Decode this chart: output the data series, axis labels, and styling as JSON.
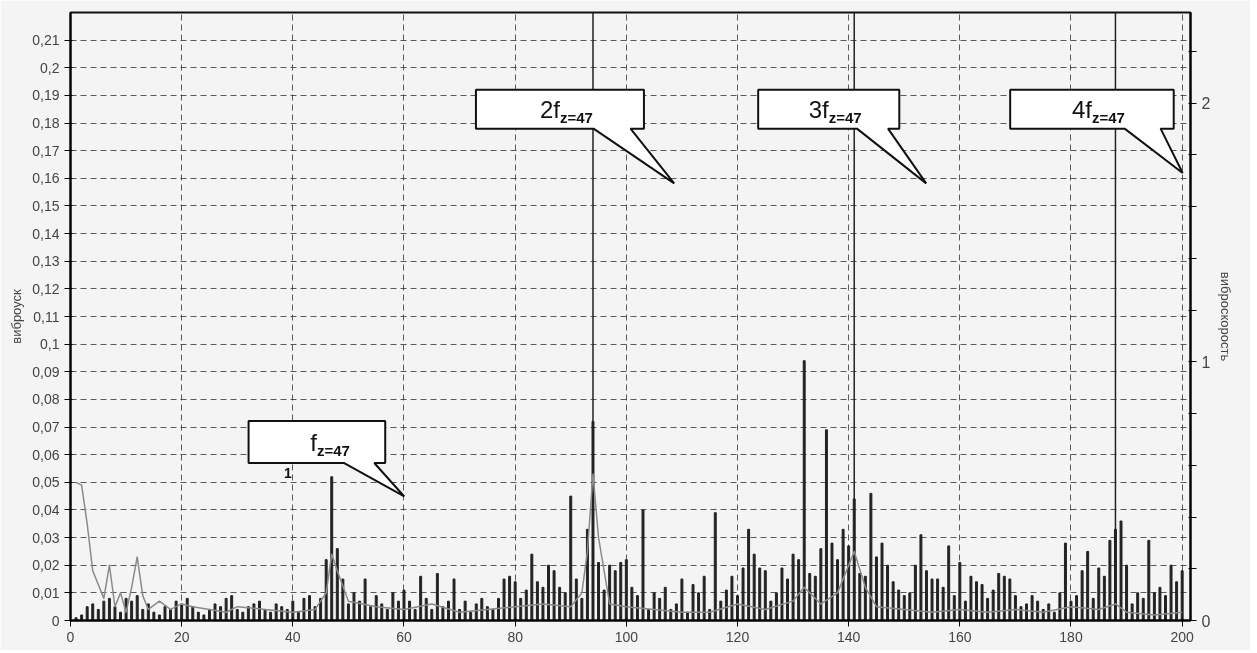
{
  "chart_data": {
    "type": "bar",
    "ylabel": "виброуск",
    "y2label": "виброскорость",
    "xlim": [
      0,
      201.5
    ],
    "xticks": [
      0,
      20,
      40,
      60,
      80,
      100,
      120,
      140,
      160,
      180,
      200
    ],
    "ylim": [
      0,
      0.22
    ],
    "yticks": [
      0,
      {
        "value": 0.01,
        "label": "0,01"
      },
      {
        "value": 0.02,
        "label": "0,02"
      },
      {
        "value": 0.03,
        "label": "0,03"
      },
      {
        "value": 0.04,
        "label": "0,04"
      },
      {
        "value": 0.05,
        "label": "0,05"
      },
      {
        "value": 0.06,
        "label": "0,06"
      },
      {
        "value": 0.07,
        "label": "0,07"
      },
      {
        "value": 0.08,
        "label": "0,08"
      },
      {
        "value": 0.09,
        "label": "0,09"
      },
      {
        "value": 0.1,
        "label": "0,1"
      },
      {
        "value": 0.11,
        "label": "0,11"
      },
      {
        "value": 0.12,
        "label": "0,12"
      },
      {
        "value": 0.13,
        "label": "0,13"
      },
      {
        "value": 0.14,
        "label": "0,14"
      },
      {
        "value": 0.15,
        "label": "0,15"
      },
      {
        "value": 0.16,
        "label": "0,16"
      },
      {
        "value": 0.17,
        "label": "0,17"
      },
      {
        "value": 0.18,
        "label": "0,18"
      },
      {
        "value": 0.19,
        "label": "0,19"
      },
      {
        "value": 0.2,
        "label": "0,2"
      },
      {
        "value": 0.21,
        "label": "0,21"
      }
    ],
    "y2lim": [
      0,
      2.35
    ],
    "y2ticks": [
      0,
      {
        "value": 0.2,
        "label": null
      },
      {
        "value": 0.4,
        "label": null
      },
      {
        "value": 0.6,
        "label": null
      },
      {
        "value": 0.8,
        "label": null
      },
      1,
      {
        "value": 1.2,
        "label": null
      },
      {
        "value": 1.4,
        "label": null
      },
      {
        "value": 1.6,
        "label": null
      },
      {
        "value": 1.8,
        "label": null
      },
      2,
      {
        "value": 2.2,
        "label": null
      }
    ],
    "grid": true,
    "series": [
      {
        "color": "#222222",
        "x": [
          1,
          2,
          3,
          4,
          5,
          6,
          7,
          8,
          9,
          10,
          11,
          12,
          13,
          14,
          15,
          16,
          17,
          18,
          19,
          20,
          21,
          22,
          23,
          24,
          25,
          26,
          27,
          28,
          29,
          30,
          31,
          32,
          33,
          34,
          35,
          36,
          37,
          38,
          39,
          40,
          41,
          42,
          43,
          44,
          45,
          46,
          47,
          48,
          49,
          50,
          51,
          52,
          53,
          54,
          55,
          56,
          57,
          58,
          59,
          60,
          61,
          62,
          63,
          64,
          65,
          66,
          67,
          68,
          69,
          70,
          71,
          72,
          73,
          74,
          75,
          76,
          77,
          78,
          79,
          80,
          81,
          82,
          83,
          84,
          85,
          86,
          87,
          88,
          89,
          90,
          91,
          92,
          93,
          94,
          95,
          96,
          97,
          98,
          99,
          100,
          101,
          102,
          103,
          104,
          105,
          106,
          107,
          108,
          109,
          110,
          111,
          112,
          113,
          114,
          115,
          116,
          117,
          118,
          119,
          120,
          121,
          122,
          123,
          124,
          125,
          126,
          127,
          128,
          129,
          130,
          131,
          132,
          133,
          134,
          135,
          136,
          137,
          138,
          139,
          140,
          141,
          142,
          143,
          144,
          145,
          146,
          147,
          148,
          149,
          150,
          151,
          152,
          153,
          154,
          155,
          156,
          157,
          158,
          159,
          160,
          161,
          162,
          163,
          164,
          165,
          166,
          167,
          168,
          169,
          170,
          171,
          172,
          173,
          174,
          175,
          176,
          177,
          178,
          179,
          180,
          181,
          182,
          183,
          184,
          185,
          186,
          187,
          188,
          189,
          190,
          191,
          192,
          193,
          194,
          195,
          196,
          197,
          198,
          199,
          200
        ],
        "values": [
          0.001,
          0.002,
          0.005,
          0.006,
          0.004,
          0.007,
          0.008,
          0.005,
          0.003,
          0.008,
          0.007,
          0.009,
          0.004,
          0.006,
          0.003,
          0.002,
          0.005,
          0.004,
          0.007,
          0.006,
          0.008,
          0.005,
          0.003,
          0.002,
          0.004,
          0.006,
          0.005,
          0.008,
          0.009,
          0.004,
          0.003,
          0.005,
          0.006,
          0.007,
          0.004,
          0.003,
          0.006,
          0.005,
          0.004,
          0.007,
          0.003,
          0.008,
          0.009,
          0.005,
          0.008,
          0.022,
          0.052,
          0.026,
          0.015,
          0.006,
          0.01,
          0.007,
          0.015,
          0.005,
          0.009,
          0.006,
          0.004,
          0.01,
          0.007,
          0.011,
          0.007,
          0.004,
          0.016,
          0.008,
          0.004,
          0.017,
          0.005,
          0.007,
          0.015,
          0.004,
          0.007,
          0.003,
          0.006,
          0.008,
          0.005,
          0.004,
          0.008,
          0.015,
          0.016,
          0.014,
          0.008,
          0.011,
          0.024,
          0.014,
          0.012,
          0.02,
          0.018,
          0.012,
          0.01,
          0.045,
          0.015,
          0.008,
          0.033,
          0.072,
          0.021,
          0.011,
          0.02,
          0.018,
          0.021,
          0.022,
          0.012,
          0.009,
          0.04,
          0.004,
          0.01,
          0.008,
          0.012,
          0.004,
          0.006,
          0.015,
          0.003,
          0.013,
          0.01,
          0.016,
          0.004,
          0.039,
          0.007,
          0.011,
          0.016,
          0.009,
          0.019,
          0.033,
          0.024,
          0.019,
          0.018,
          0.007,
          0.01,
          0.019,
          0.015,
          0.024,
          0.022,
          0.094,
          0.017,
          0.016,
          0.026,
          0.069,
          0.028,
          0.022,
          0.033,
          0.027,
          0.044,
          0.017,
          0.016,
          0.046,
          0.023,
          0.028,
          0.02,
          0.014,
          0.011,
          0.009,
          0.01,
          0.02,
          0.031,
          0.018,
          0.015,
          0.015,
          0.012,
          0.027,
          0.009,
          0.021,
          0.007,
          0.016,
          0.014,
          0.013,
          0.008,
          0.011,
          0.017,
          0.016,
          0.015,
          0.009,
          0.005,
          0.006,
          0.009,
          0.007,
          0.004,
          0.006,
          0.003,
          0.01,
          0.028,
          0.007,
          0.009,
          0.018,
          0.025,
          0.008,
          0.019,
          0.016,
          0.029,
          0.033,
          0.036,
          0.02,
          0.006,
          0.01,
          0.008,
          0.029,
          0.01,
          0.012,
          0.009,
          0.02,
          0.014,
          0.018
        ]
      },
      {
        "type": "line",
        "color": "#8a8a8a",
        "x": [
          1,
          2,
          3,
          4,
          5,
          6,
          7,
          8,
          9,
          10,
          11,
          12,
          13,
          14,
          16,
          18,
          20,
          22,
          25,
          28,
          30,
          35,
          40,
          44,
          46,
          47,
          48,
          50,
          55,
          60,
          65,
          70,
          75,
          80,
          85,
          90,
          92,
          93,
          94,
          95,
          97,
          100,
          105,
          110,
          115,
          120,
          125,
          130,
          132,
          135,
          138,
          141,
          143,
          145,
          150,
          155,
          160,
          165,
          170,
          175,
          180,
          185,
          188,
          190,
          195,
          200
        ],
        "values": [
          0.05,
          0.049,
          0.035,
          0.018,
          0.013,
          0.008,
          0.02,
          0.005,
          0.01,
          0.003,
          0.012,
          0.023,
          0.009,
          0.004,
          0.007,
          0.004,
          0.006,
          0.005,
          0.004,
          0.003,
          0.005,
          0.004,
          0.003,
          0.004,
          0.01,
          0.024,
          0.018,
          0.007,
          0.005,
          0.004,
          0.006,
          0.003,
          0.004,
          0.005,
          0.006,
          0.005,
          0.01,
          0.025,
          0.053,
          0.03,
          0.006,
          0.005,
          0.004,
          0.003,
          0.003,
          0.006,
          0.004,
          0.007,
          0.012,
          0.006,
          0.01,
          0.025,
          0.012,
          0.005,
          0.004,
          0.003,
          0.004,
          0.003,
          0.004,
          0.003,
          0.005,
          0.004,
          0.006,
          0.003,
          0.002,
          0.003
        ]
      }
    ],
    "ref_lines": [
      {
        "axis": "x",
        "value": 94,
        "color": "#222222"
      },
      {
        "axis": "x",
        "value": 141,
        "color": "#222222"
      },
      {
        "axis": "x",
        "value": 188,
        "color": "#222222"
      }
    ],
    "annotations": [
      "f$_{z=47}$",
      "2f$_{z=47}$",
      "3f$_{z=47}$",
      "4f$_{z=47}$",
      "1"
    ]
  }
}
